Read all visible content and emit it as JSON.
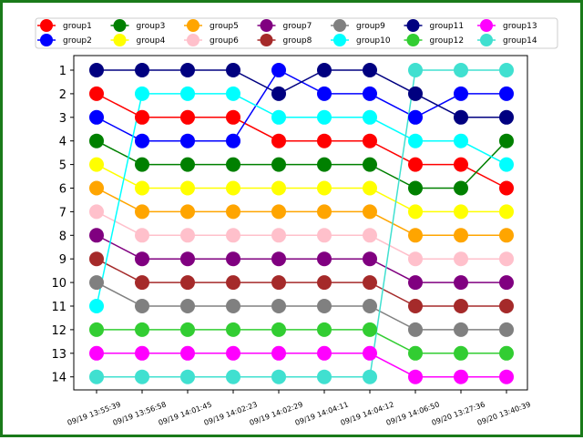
{
  "chart_data": {
    "type": "line",
    "title": "",
    "xlabel": "",
    "ylabel": "",
    "y_inverted": true,
    "ylim": [
      14,
      1
    ],
    "yticks": [
      1,
      2,
      3,
      4,
      5,
      6,
      7,
      8,
      9,
      10,
      11,
      12,
      13,
      14
    ],
    "x": [
      "09/19 13:55:39",
      "09/19 13:56:58",
      "09/19 14:01:45",
      "09/19 14:02:23",
      "09/19 14:02:29",
      "09/19 14:04:11",
      "09/19 14:04:12",
      "09/19 14:06:50",
      "09/20 13:27:36",
      "09/20 13:40:39"
    ],
    "legend_position": "top",
    "grid": false,
    "series": [
      {
        "name": "group1",
        "color": "#ff0000",
        "values": [
          2,
          3,
          3,
          3,
          4,
          4,
          4,
          5,
          5,
          6
        ]
      },
      {
        "name": "group2",
        "color": "#0000ff",
        "values": [
          3,
          4,
          4,
          4,
          1,
          2,
          2,
          3,
          2,
          2
        ]
      },
      {
        "name": "group3",
        "color": "#008000",
        "values": [
          4,
          5,
          5,
          5,
          5,
          5,
          5,
          6,
          6,
          4
        ]
      },
      {
        "name": "group4",
        "color": "#ffff00",
        "values": [
          5,
          6,
          6,
          6,
          6,
          6,
          6,
          7,
          7,
          7
        ]
      },
      {
        "name": "group5",
        "color": "#ffa500",
        "values": [
          6,
          7,
          7,
          7,
          7,
          7,
          7,
          8,
          8,
          8
        ]
      },
      {
        "name": "group6",
        "color": "#ffc0cb",
        "values": [
          7,
          8,
          8,
          8,
          8,
          8,
          8,
          9,
          9,
          9
        ]
      },
      {
        "name": "group7",
        "color": "#800080",
        "values": [
          8,
          9,
          9,
          9,
          9,
          9,
          9,
          10,
          10,
          10
        ]
      },
      {
        "name": "group8",
        "color": "#a52a2a",
        "values": [
          9,
          10,
          10,
          10,
          10,
          10,
          10,
          11,
          11,
          11
        ]
      },
      {
        "name": "group9",
        "color": "#808080",
        "values": [
          10,
          11,
          11,
          11,
          11,
          11,
          11,
          12,
          12,
          12
        ]
      },
      {
        "name": "group10",
        "color": "#00ffff",
        "values": [
          11,
          2,
          2,
          2,
          3,
          3,
          3,
          4,
          4,
          5
        ]
      },
      {
        "name": "group11",
        "color": "#000080",
        "values": [
          1,
          1,
          1,
          1,
          2,
          1,
          1,
          2,
          3,
          3
        ]
      },
      {
        "name": "group12",
        "color": "#32cd32",
        "values": [
          12,
          12,
          12,
          12,
          12,
          12,
          12,
          13,
          13,
          13
        ]
      },
      {
        "name": "group13",
        "color": "#ff00ff",
        "values": [
          13,
          13,
          13,
          13,
          13,
          13,
          13,
          14,
          14,
          14
        ]
      },
      {
        "name": "group14",
        "color": "#40e0d0",
        "values": [
          14,
          14,
          14,
          14,
          14,
          14,
          14,
          1,
          1,
          1
        ]
      }
    ]
  }
}
